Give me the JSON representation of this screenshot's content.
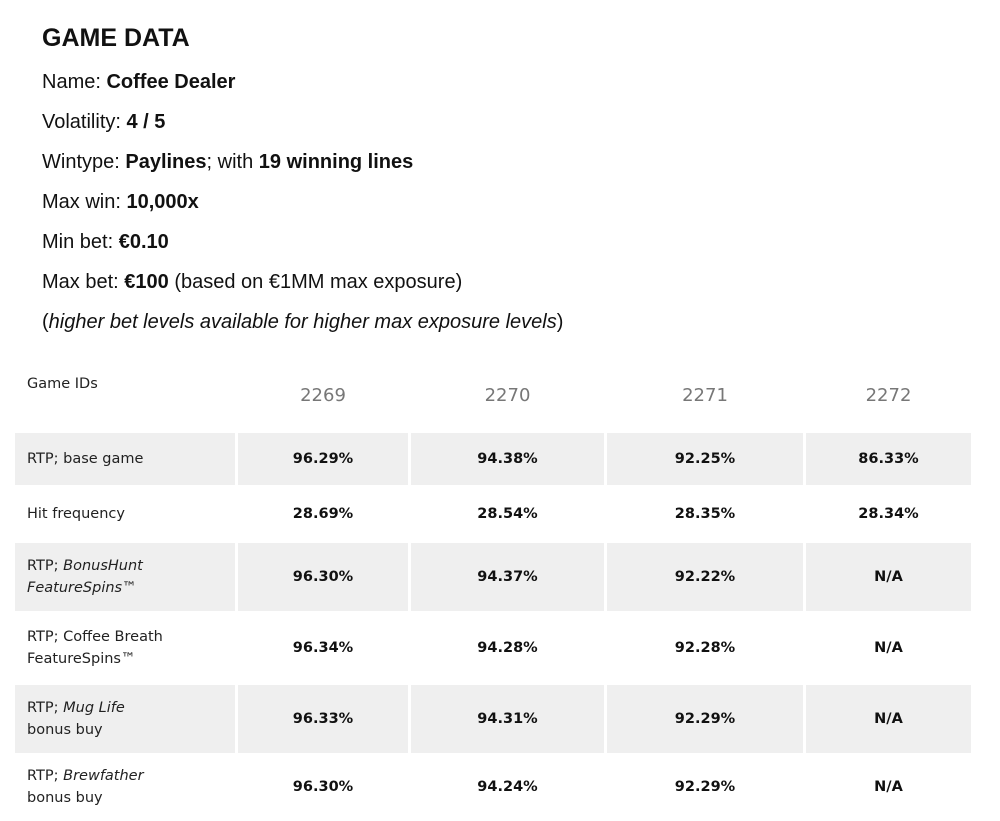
{
  "header": {
    "title": "GAME DATA"
  },
  "facts": [
    [
      {
        "text": "Name: ",
        "style": "normal"
      },
      {
        "text": "Coffee Dealer",
        "style": "bold"
      }
    ],
    [
      {
        "text": "Volatility: ",
        "style": "normal"
      },
      {
        "text": "4 / 5",
        "style": "bold"
      }
    ],
    [
      {
        "text": "Wintype: ",
        "style": "normal"
      },
      {
        "text": "Paylines",
        "style": "bold"
      },
      {
        "text": "; with ",
        "style": "normal"
      },
      {
        "text": "19 winning lines",
        "style": "bold"
      }
    ],
    [
      {
        "text": "Max win: ",
        "style": "normal"
      },
      {
        "text": "10,000x",
        "style": "bold"
      }
    ],
    [
      {
        "text": "Min bet: ",
        "style": "normal"
      },
      {
        "text": "€0.10",
        "style": "bold"
      }
    ],
    [
      {
        "text": "Max bet: ",
        "style": "normal"
      },
      {
        "text": "€100",
        "style": "bold"
      },
      {
        "text": " (based on €1MM max exposure)",
        "style": "normal"
      }
    ],
    [
      {
        "text": "(",
        "style": "normal"
      },
      {
        "text": "higher bet levels available for higher max exposure levels",
        "style": "italic"
      },
      {
        "text": ")",
        "style": "normal"
      }
    ]
  ],
  "table": {
    "header": [
      "Game IDs",
      "2269",
      "2270",
      "2271",
      "2272"
    ],
    "rows": [
      {
        "label": [
          [
            {
              "text": "RTP; base game",
              "style": "normal"
            }
          ]
        ],
        "values": [
          "96.29%",
          "94.38%",
          "92.25%",
          "86.33%"
        ],
        "shaded": true
      },
      {
        "label": [
          [
            {
              "text": "Hit frequency",
              "style": "normal"
            }
          ]
        ],
        "values": [
          "28.69%",
          "28.54%",
          "28.35%",
          "28.34%"
        ],
        "shaded": false
      },
      {
        "label": [
          [
            {
              "text": "RTP; ",
              "style": "normal"
            },
            {
              "text": "BonusHunt",
              "style": "italic"
            }
          ],
          [
            {
              "text": "FeatureSpins™",
              "style": "italic"
            }
          ]
        ],
        "values": [
          "96.30%",
          "94.37%",
          "92.22%",
          "N/A"
        ],
        "shaded": true
      },
      {
        "label": [
          [
            {
              "text": "RTP; Coffee Breath",
              "style": "normal"
            }
          ],
          [
            {
              "text": "FeatureSpins™",
              "style": "normal"
            }
          ]
        ],
        "values": [
          "96.34%",
          "94.28%",
          "92.28%",
          "N/A"
        ],
        "shaded": false
      },
      {
        "label": [
          [
            {
              "text": "RTP; ",
              "style": "normal"
            },
            {
              "text": "Mug Life",
              "style": "italic"
            }
          ],
          [
            {
              "text": "bonus buy",
              "style": "normal"
            }
          ]
        ],
        "values": [
          "96.33%",
          "94.31%",
          "92.29%",
          "N/A"
        ],
        "shaded": true
      },
      {
        "label": [
          [
            {
              "text": "RTP; ",
              "style": "normal"
            },
            {
              "text": "Brewfather",
              "style": "italic"
            }
          ],
          [
            {
              "text": "bonus buy",
              "style": "normal"
            }
          ]
        ],
        "values": [
          "96.30%",
          "94.24%",
          "92.29%",
          "N/A"
        ],
        "shaded": false
      }
    ]
  }
}
